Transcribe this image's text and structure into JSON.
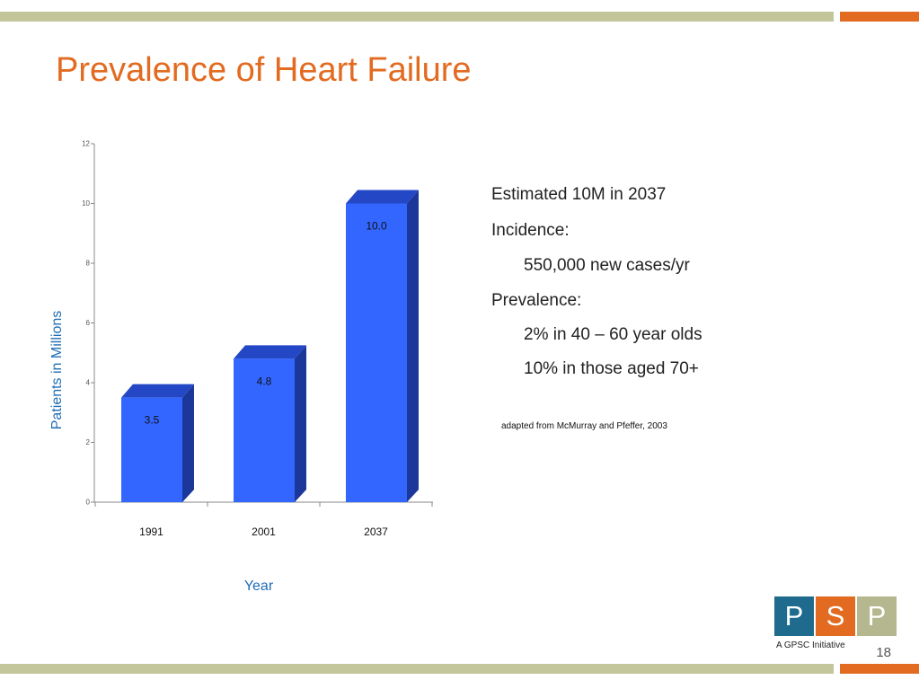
{
  "slide": {
    "title": "Prevalence of Heart Failure",
    "page_number": "18"
  },
  "colors": {
    "accent_orange": "#e26b21",
    "bar_olive": "#c3c59a",
    "bar_front": "#3366ff",
    "bar_side": "#1a3799",
    "bar_top": "#2447c6",
    "label_blue": "#1f6db5"
  },
  "notes": {
    "lines": [
      {
        "text": "Estimated 10M in 2037",
        "indent": false
      },
      {
        "text": "Incidence:",
        "indent": false
      },
      {
        "text": "550,000 new cases/yr",
        "indent": true
      },
      {
        "text": "Prevalence:",
        "indent": false
      },
      {
        "text": "2% in 40 – 60 year olds",
        "indent": true
      },
      {
        "text": "10% in those aged 70+",
        "indent": true
      }
    ],
    "source": "adapted from McMurray and Pfeffer, 2003"
  },
  "logo": {
    "letters": [
      "P",
      "S",
      "P"
    ],
    "box_colors": [
      "#1f6b8e",
      "#e26b21",
      "#b5b88e"
    ],
    "tagline": "A GPSC Initiative"
  },
  "chart_data": {
    "type": "bar",
    "categories": [
      "1991",
      "2001",
      "2037"
    ],
    "values": [
      3.5,
      4.8,
      10.0
    ],
    "data_labels": [
      "3.5",
      "4.8",
      "10.0"
    ],
    "title": "",
    "xlabel": "Year",
    "ylabel": "Patients in Millions",
    "ylim": [
      0,
      12
    ],
    "yticks": [
      0,
      2,
      4,
      6,
      8,
      10,
      12
    ],
    "ytick_labels": [
      "0",
      "2",
      "4",
      "6",
      "8",
      "10",
      "12"
    ],
    "grid": false,
    "legend": "none",
    "style": "3d-column"
  }
}
